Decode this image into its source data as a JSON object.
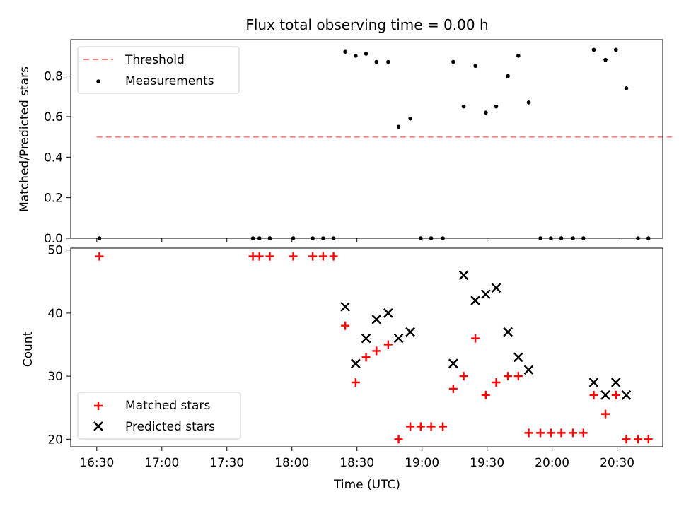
{
  "chart_data": [
    {
      "type": "scatter",
      "panel": "top",
      "title": "Flux total observing time = 0.00 h",
      "xlabel": "",
      "ylabel": "Matched/Predicted stars",
      "ylim": [
        0,
        0.98
      ],
      "yticks": [
        "0.0",
        "0.2",
        "0.4",
        "0.6",
        "0.8"
      ],
      "threshold": {
        "name": "Threshold",
        "value": 0.5,
        "x_start": 16.5,
        "x_end": 20.92,
        "color": "#ff7f7f"
      },
      "series": [
        {
          "name": "Measurements",
          "color": "#000000",
          "x": [
            16.52,
            17.7,
            17.75,
            17.83,
            18.01,
            18.16,
            18.24,
            18.32,
            18.41,
            18.49,
            18.57,
            18.65,
            18.74,
            18.82,
            18.91,
            18.99,
            19.07,
            19.16,
            19.24,
            19.32,
            19.41,
            19.49,
            19.57,
            19.66,
            19.74,
            19.82,
            19.91,
            19.99,
            20.07,
            20.16,
            20.24,
            20.32,
            20.41,
            20.49,
            20.57,
            20.66,
            20.74
          ],
          "y": [
            0,
            0,
            0,
            0,
            0,
            0,
            0,
            0,
            0.92,
            0.9,
            0.91,
            0.87,
            0.87,
            0.55,
            0.59,
            0,
            0,
            0,
            0.87,
            0.65,
            0.85,
            0.62,
            0.65,
            0.8,
            0.9,
            0.67,
            0,
            0,
            0,
            0,
            0,
            0.93,
            0.88,
            0.93,
            0.74,
            0,
            0
          ]
        }
      ]
    },
    {
      "type": "scatter",
      "panel": "bottom",
      "xlabel": "Time (UTC)",
      "ylabel": "Count",
      "ylim": [
        18.8,
        50.3
      ],
      "yticks": [
        "20",
        "30",
        "40",
        "50"
      ],
      "xlim": [
        16.3,
        20.85
      ],
      "xticks": [
        {
          "value": 16.5,
          "label": "16:30"
        },
        {
          "value": 17.0,
          "label": "17:00"
        },
        {
          "value": 17.5,
          "label": "17:30"
        },
        {
          "value": 18.0,
          "label": "18:00"
        },
        {
          "value": 18.5,
          "label": "18:30"
        },
        {
          "value": 19.0,
          "label": "19:00"
        },
        {
          "value": 19.5,
          "label": "19:30"
        },
        {
          "value": 20.0,
          "label": "20:00"
        },
        {
          "value": 20.5,
          "label": "20:30"
        }
      ],
      "series": [
        {
          "name": "Matched stars",
          "marker": "+",
          "color": "#ff0000",
          "x": [
            16.52,
            17.7,
            17.75,
            17.83,
            18.01,
            18.16,
            18.24,
            18.32,
            18.41,
            18.49,
            18.57,
            18.65,
            18.74,
            18.82,
            18.91,
            18.99,
            19.07,
            19.16,
            19.24,
            19.32,
            19.41,
            19.49,
            19.57,
            19.66,
            19.74,
            19.82,
            19.91,
            19.99,
            20.07,
            20.16,
            20.24,
            20.32,
            20.41,
            20.49,
            20.57,
            20.66,
            20.74
          ],
          "y": [
            49,
            49,
            49,
            49,
            49,
            49,
            49,
            49,
            38,
            29,
            33,
            34,
            35,
            20,
            22,
            22,
            22,
            22,
            28,
            30,
            36,
            27,
            29,
            30,
            30,
            21,
            21,
            21,
            21,
            21,
            21,
            27,
            24,
            27,
            20,
            20,
            20
          ]
        },
        {
          "name": "Predicted stars",
          "marker": "x",
          "color": "#000000",
          "x": [
            18.41,
            18.49,
            18.57,
            18.65,
            18.74,
            18.82,
            18.91,
            19.24,
            19.32,
            19.41,
            19.49,
            19.57,
            19.66,
            19.74,
            19.82,
            20.32,
            20.41,
            20.49,
            20.57
          ],
          "y": [
            41,
            32,
            36,
            39,
            40,
            36,
            37,
            32,
            46,
            42,
            43,
            44,
            37,
            33,
            31,
            29,
            27,
            29,
            27
          ]
        }
      ]
    }
  ]
}
